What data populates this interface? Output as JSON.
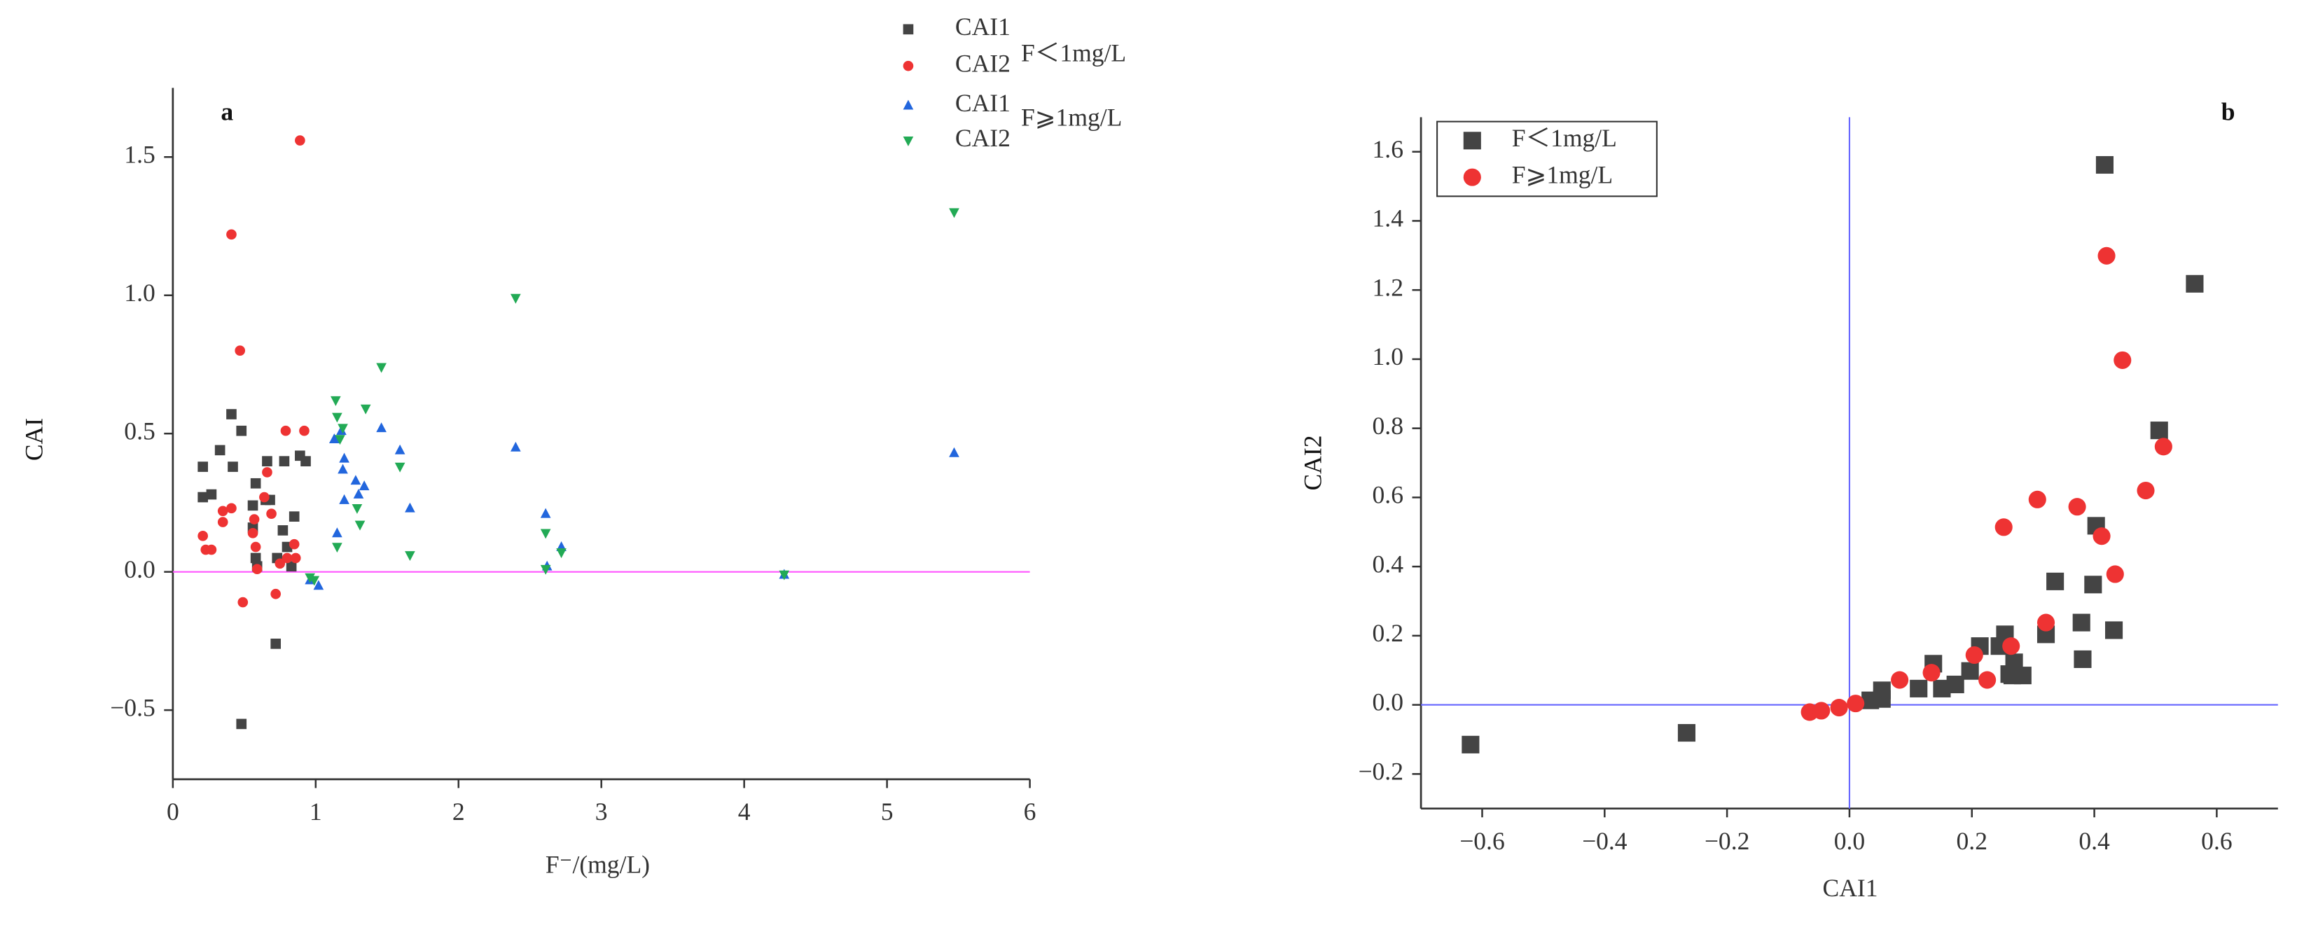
{
  "chart_data": [
    {
      "type": "scatter",
      "panel_label": "a",
      "xlabel": "F⁻/(mg/L)",
      "ylabel": "CAI",
      "xlim": [
        0,
        6
      ],
      "xticks": [
        0,
        1,
        2,
        3,
        4,
        5,
        6
      ],
      "ylim": [
        -0.75,
        1.75
      ],
      "yticks": [
        {
          "value": -0.5,
          "label": "−0.5"
        },
        {
          "value": 0,
          "label": "0.0"
        },
        0.5,
        {
          "value": 1,
          "label": "1.0"
        },
        1.5
      ],
      "reference_lines": [
        {
          "axis": "y",
          "value": 0,
          "color": "#ff55ff"
        }
      ],
      "legend_groups": [
        "F＜1mg/L",
        "F⩾1mg/L"
      ],
      "series": [
        {
          "name": "CAI1",
          "color": "#444444",
          "marker": "square",
          "x": [
            0.21,
            0.21,
            0.27,
            0.33,
            0.41,
            0.42,
            0.48,
            0.56,
            0.56,
            0.58,
            0.58,
            0.59,
            0.65,
            0.66,
            0.68,
            0.73,
            0.72,
            0.77,
            0.78,
            0.8,
            0.83,
            0.85,
            0.89,
            0.93,
            0.48
          ],
          "values": [
            0.38,
            0.27,
            0.28,
            0.44,
            0.57,
            0.38,
            0.51,
            0.24,
            0.16,
            0.32,
            0.05,
            0.02,
            0.26,
            0.4,
            0.26,
            0.05,
            -0.26,
            0.15,
            0.4,
            0.09,
            0.02,
            0.2,
            0.42,
            0.4,
            -0.55
          ]
        },
        {
          "name": "CAI2",
          "color": "#ee3333",
          "marker": "circle",
          "x": [
            0.21,
            0.23,
            0.27,
            0.35,
            0.35,
            0.41,
            0.41,
            0.47,
            0.49,
            0.56,
            0.57,
            0.58,
            0.59,
            0.64,
            0.66,
            0.69,
            0.72,
            0.75,
            0.79,
            0.8,
            0.85,
            0.86,
            0.89,
            0.92
          ],
          "values": [
            0.13,
            0.08,
            0.08,
            0.18,
            0.22,
            1.22,
            0.23,
            0.8,
            -0.11,
            0.14,
            0.19,
            0.09,
            0.01,
            0.27,
            0.36,
            0.21,
            -0.08,
            0.03,
            0.51,
            0.05,
            0.1,
            0.05,
            1.56,
            0.51
          ]
        },
        {
          "name": "CAI1",
          "color": "#2266dd",
          "marker": "triangle-up",
          "x": [
            0.96,
            1.02,
            1.13,
            1.15,
            1.18,
            1.19,
            1.2,
            1.2,
            1.28,
            1.3,
            1.34,
            1.46,
            1.59,
            1.66,
            2.4,
            2.61,
            2.62,
            2.72,
            4.28,
            5.47
          ],
          "values": [
            -0.03,
            -0.05,
            0.48,
            0.14,
            0.51,
            0.37,
            0.41,
            0.26,
            0.33,
            0.28,
            0.31,
            0.52,
            0.44,
            0.23,
            0.45,
            0.21,
            0.02,
            0.09,
            -0.01,
            0.43
          ]
        },
        {
          "name": "CAI2",
          "color": "#22aa55",
          "marker": "triangle-down",
          "x": [
            0.96,
            0.99,
            1.14,
            1.15,
            1.17,
            1.19,
            1.15,
            1.29,
            1.31,
            1.35,
            1.46,
            1.59,
            1.66,
            2.4,
            2.61,
            2.61,
            2.72,
            4.28,
            5.47
          ],
          "values": [
            -0.02,
            -0.03,
            0.62,
            0.56,
            0.48,
            0.52,
            0.09,
            0.23,
            0.17,
            0.59,
            0.74,
            0.38,
            0.06,
            0.99,
            0.14,
            0.01,
            0.07,
            -0.01,
            1.3
          ]
        }
      ]
    },
    {
      "type": "scatter",
      "panel_label": "b",
      "xlabel": "CAI1",
      "ylabel": "CAI2",
      "xlim": [
        -0.7,
        0.7
      ],
      "xticks": [
        {
          "value": -0.6,
          "label": "−0.6"
        },
        {
          "value": -0.4,
          "label": "−0.4"
        },
        {
          "value": -0.2,
          "label": "−0.2"
        },
        {
          "value": 0,
          "label": "0.0"
        },
        0.2,
        0.4,
        0.6
      ],
      "ylim": [
        -0.3,
        1.7
      ],
      "yticks": [
        {
          "value": -0.2,
          "label": "−0.2"
        },
        {
          "value": 0,
          "label": "0.0"
        },
        0.2,
        0.4,
        0.6,
        0.8,
        {
          "value": 1,
          "label": "1.0"
        },
        1.2,
        1.4,
        1.6
      ],
      "reference_lines": [
        {
          "axis": "x",
          "value": 0,
          "color": "#6666ff"
        },
        {
          "axis": "y",
          "value": 0,
          "color": "#6666ff"
        }
      ],
      "series": [
        {
          "name": "F＜1mg/L",
          "color": "#444444",
          "marker": "square",
          "x": [
            -0.619,
            -0.266,
            0.034,
            0.053,
            0.053,
            0.113,
            0.137,
            0.151,
            0.173,
            0.197,
            0.213,
            0.245,
            0.254,
            0.261,
            0.269,
            0.266,
            0.283,
            0.321,
            0.336,
            0.379,
            0.381,
            0.398,
            0.403,
            0.417,
            0.432,
            0.506,
            0.564
          ],
          "values": [
            -0.115,
            -0.081,
            0.013,
            0.042,
            0.017,
            0.047,
            0.119,
            0.047,
            0.059,
            0.098,
            0.17,
            0.17,
            0.204,
            0.089,
            0.123,
            0.085,
            0.085,
            0.204,
            0.357,
            0.238,
            0.132,
            0.348,
            0.518,
            1.562,
            0.216,
            0.794,
            1.218
          ]
        },
        {
          "name": "F⩾1mg/L",
          "color": "#ee3333",
          "marker": "circle",
          "x": [
            -0.065,
            -0.046,
            -0.017,
            0.01,
            0.082,
            0.134,
            0.204,
            0.225,
            0.252,
            0.264,
            0.321,
            0.307,
            0.372,
            0.412,
            0.42,
            0.434,
            0.446,
            0.484,
            0.513
          ],
          "values": [
            -0.021,
            -0.017,
            -0.008,
            0.004,
            0.072,
            0.093,
            0.144,
            0.072,
            0.514,
            0.17,
            0.238,
            0.594,
            0.573,
            0.488,
            1.299,
            0.378,
            0.997,
            0.62,
            0.747
          ]
        }
      ]
    }
  ]
}
